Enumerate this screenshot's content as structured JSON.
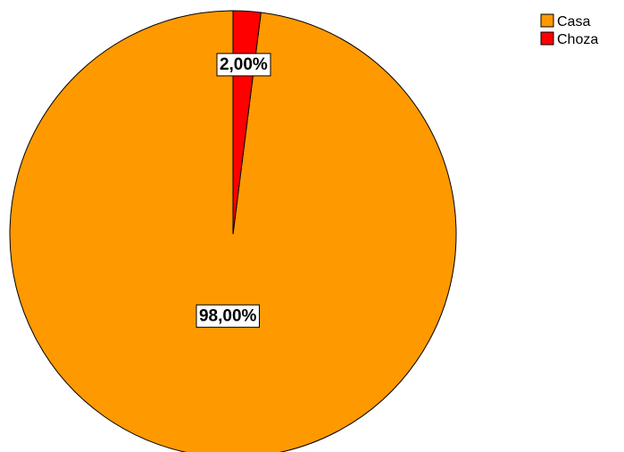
{
  "chart_data": {
    "type": "pie",
    "categories": [
      "Casa",
      "Choza"
    ],
    "values": [
      98.0,
      2.0
    ],
    "labels": [
      "98,00%",
      "2,00%"
    ],
    "colors": [
      "#FF9900",
      "#FF0000"
    ],
    "start_angle_deg": 0,
    "direction": "counterclockwise",
    "legend": {
      "position": "top-right",
      "entries": [
        "Casa",
        "Choza"
      ]
    }
  }
}
